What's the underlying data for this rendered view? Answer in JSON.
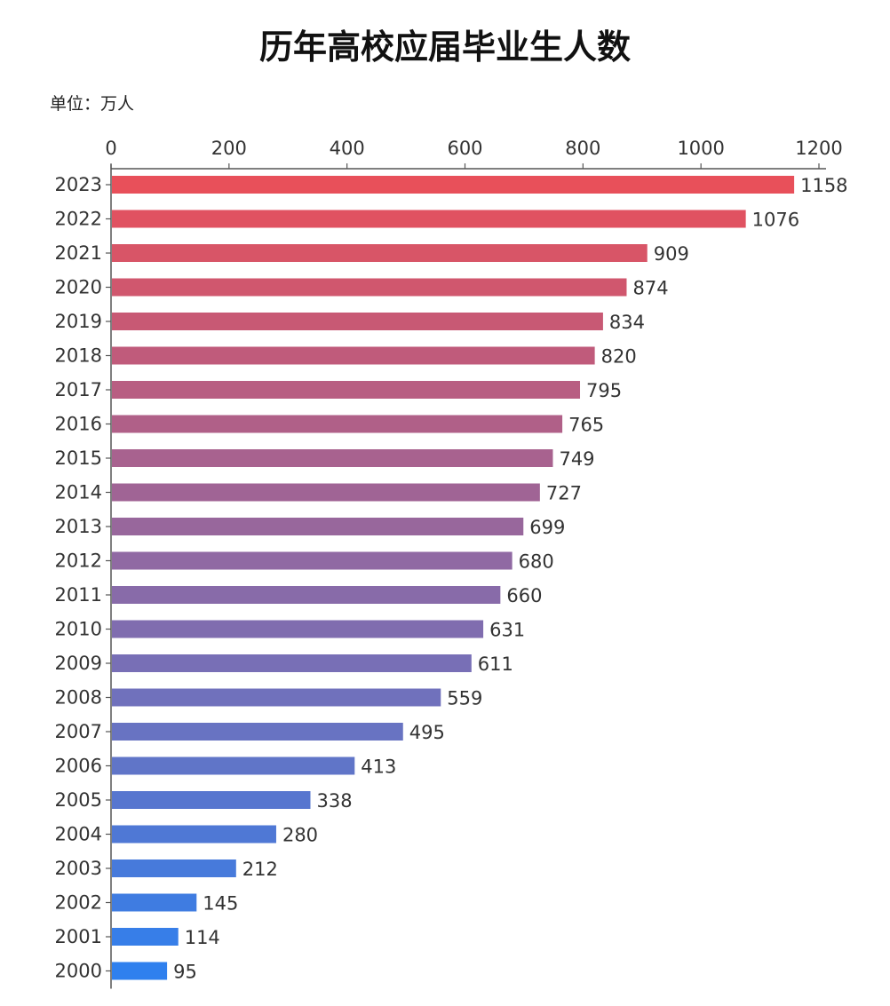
{
  "chart_data": {
    "type": "bar",
    "orientation": "horizontal",
    "title": "历年高校应届毕业生人数",
    "unit_label": "单位：万人",
    "categories": [
      "2023",
      "2022",
      "2021",
      "2020",
      "2019",
      "2018",
      "2017",
      "2016",
      "2015",
      "2014",
      "2013",
      "2012",
      "2011",
      "2010",
      "2009",
      "2008",
      "2007",
      "2006",
      "2005",
      "2004",
      "2003",
      "2002",
      "2001",
      "2000"
    ],
    "values": [
      1158,
      1076,
      909,
      874,
      834,
      820,
      795,
      765,
      749,
      727,
      699,
      680,
      660,
      631,
      611,
      559,
      495,
      413,
      338,
      280,
      212,
      145,
      114,
      95
    ],
    "xlim": [
      0,
      1200
    ],
    "xticks": [
      0,
      200,
      400,
      600,
      800,
      1000,
      1200
    ],
    "x_axis_position": "top",
    "grid": false,
    "legend": "none",
    "data_labels": true,
    "colors": {
      "top": "#e8505a",
      "middle": "#8c6aa6",
      "bottom": "#2f80ee"
    }
  }
}
